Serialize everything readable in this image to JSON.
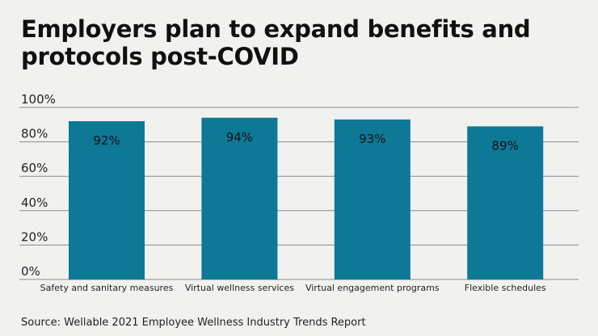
{
  "chart_data": {
    "type": "bar",
    "title": "Employers plan to expand benefits and protocols post-COVID",
    "categories": [
      "Safety and sanitary measures",
      "Virtual wellness services",
      "Virtual engagement programs",
      "Flexible schedules"
    ],
    "values": [
      92,
      94,
      93,
      89
    ],
    "data_labels": [
      "92%",
      "94%",
      "93%",
      "89%"
    ],
    "ylim": [
      0,
      100
    ],
    "yticks": [
      0,
      20,
      40,
      60,
      80,
      100
    ],
    "ytick_labels": [
      "0%",
      "20%",
      "40%",
      "60%",
      "80%",
      "100%"
    ],
    "xlabel": "",
    "ylabel": "",
    "grid": true,
    "bar_color": "#0e7897",
    "source": "Source: Wellable 2021 Employee Wellness Industry Trends Report"
  }
}
